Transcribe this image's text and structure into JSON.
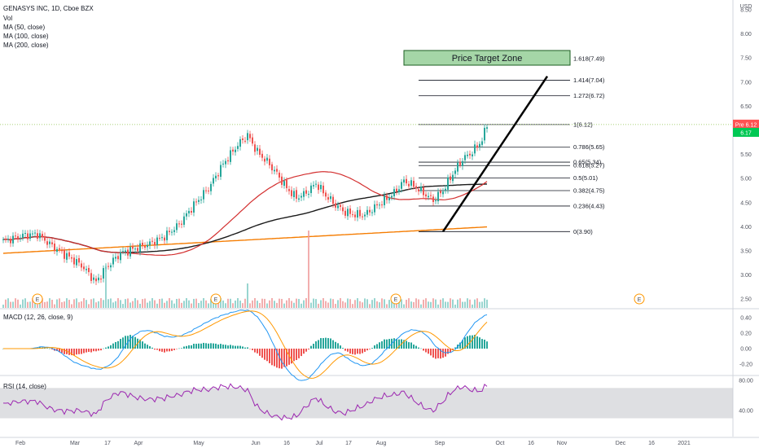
{
  "header": {
    "title": "GENASYS INC, 1D, Cboe BZX",
    "volume_label": "Vol",
    "ma_labels": [
      "MA (50, close)",
      "MA (100, close)",
      "MA (200, close)"
    ]
  },
  "macd": {
    "label": "MACD (12, 26, close, 9)",
    "ticks": [
      "0.40",
      "0.20",
      "0.00",
      "-0.20"
    ]
  },
  "rsi": {
    "label": "RSI (14, close)",
    "ticks": [
      "80.00",
      "40.00"
    ]
  },
  "price_axis": {
    "currency": "USD",
    "ticks": [
      "8.50",
      "8.00",
      "7.50",
      "7.00",
      "6.50",
      "6.00",
      "5.50",
      "5.00",
      "4.50",
      "4.00",
      "3.50",
      "3.00",
      "2.50"
    ],
    "last_price_tag": "Pre 6.12",
    "last_price_tag_2": "6.17"
  },
  "time_axis": {
    "ticks": [
      "Feb",
      "Mar",
      "17",
      "Apr",
      "May",
      "Jun",
      "16",
      "Jul",
      "17",
      "Aug",
      "Sep",
      "Oct",
      "16",
      "Nov",
      "Dec",
      "16",
      "2021"
    ]
  },
  "fib_levels": [
    {
      "ratio": "0",
      "price": 3.9,
      "label": "0(3.90)"
    },
    {
      "ratio": "0.236",
      "price": 4.43,
      "label": "0.236(4.43)"
    },
    {
      "ratio": "0.382",
      "price": 4.75,
      "label": "0.382(4.75)"
    },
    {
      "ratio": "0.5",
      "price": 5.01,
      "label": "0.5(5.01)"
    },
    {
      "ratio": "0.618",
      "price": 5.27,
      "label": "0.618(5.27)"
    },
    {
      "ratio": "0.65",
      "price": 5.34,
      "label": "0.65(5.34)"
    },
    {
      "ratio": "0.786",
      "price": 5.65,
      "label": "0.786(5.65)"
    },
    {
      "ratio": "1",
      "price": 6.12,
      "label": "1(6.12)"
    },
    {
      "ratio": "1.272",
      "price": 6.72,
      "label": "1.272(6.72)"
    },
    {
      "ratio": "1.414",
      "price": 7.04,
      "label": "1.414(7.04)"
    },
    {
      "ratio": "1.618",
      "price": 7.49,
      "label": "1.618(7.49)"
    }
  ],
  "annotations": {
    "price_target_zone": "Price Target Zone",
    "earnings_marker": "E"
  },
  "colors": {
    "up": "#26a69a",
    "down": "#ef5350",
    "ma50": "#d32f2f",
    "ma100": "#1b1b1b",
    "ma200": "#f57c00",
    "macd_line": "#2196f3",
    "signal_line": "#ff9800",
    "rsi_line": "#9c27b0",
    "rsi_band": "#c8cacf",
    "zone_fill": "#a5d6a7",
    "last_price_line": "#8bc34a"
  },
  "chart_data": {
    "type": "candlestick",
    "symbol": "GENASYS INC",
    "interval": "1D",
    "ylim": [
      2.5,
      8.75
    ],
    "pattern": "rising daily candles from about 3.9 low to 6.12 last close",
    "ma_series": [
      "MA (50, close)",
      "MA (100, close)",
      "MA (200, close)"
    ]
  }
}
